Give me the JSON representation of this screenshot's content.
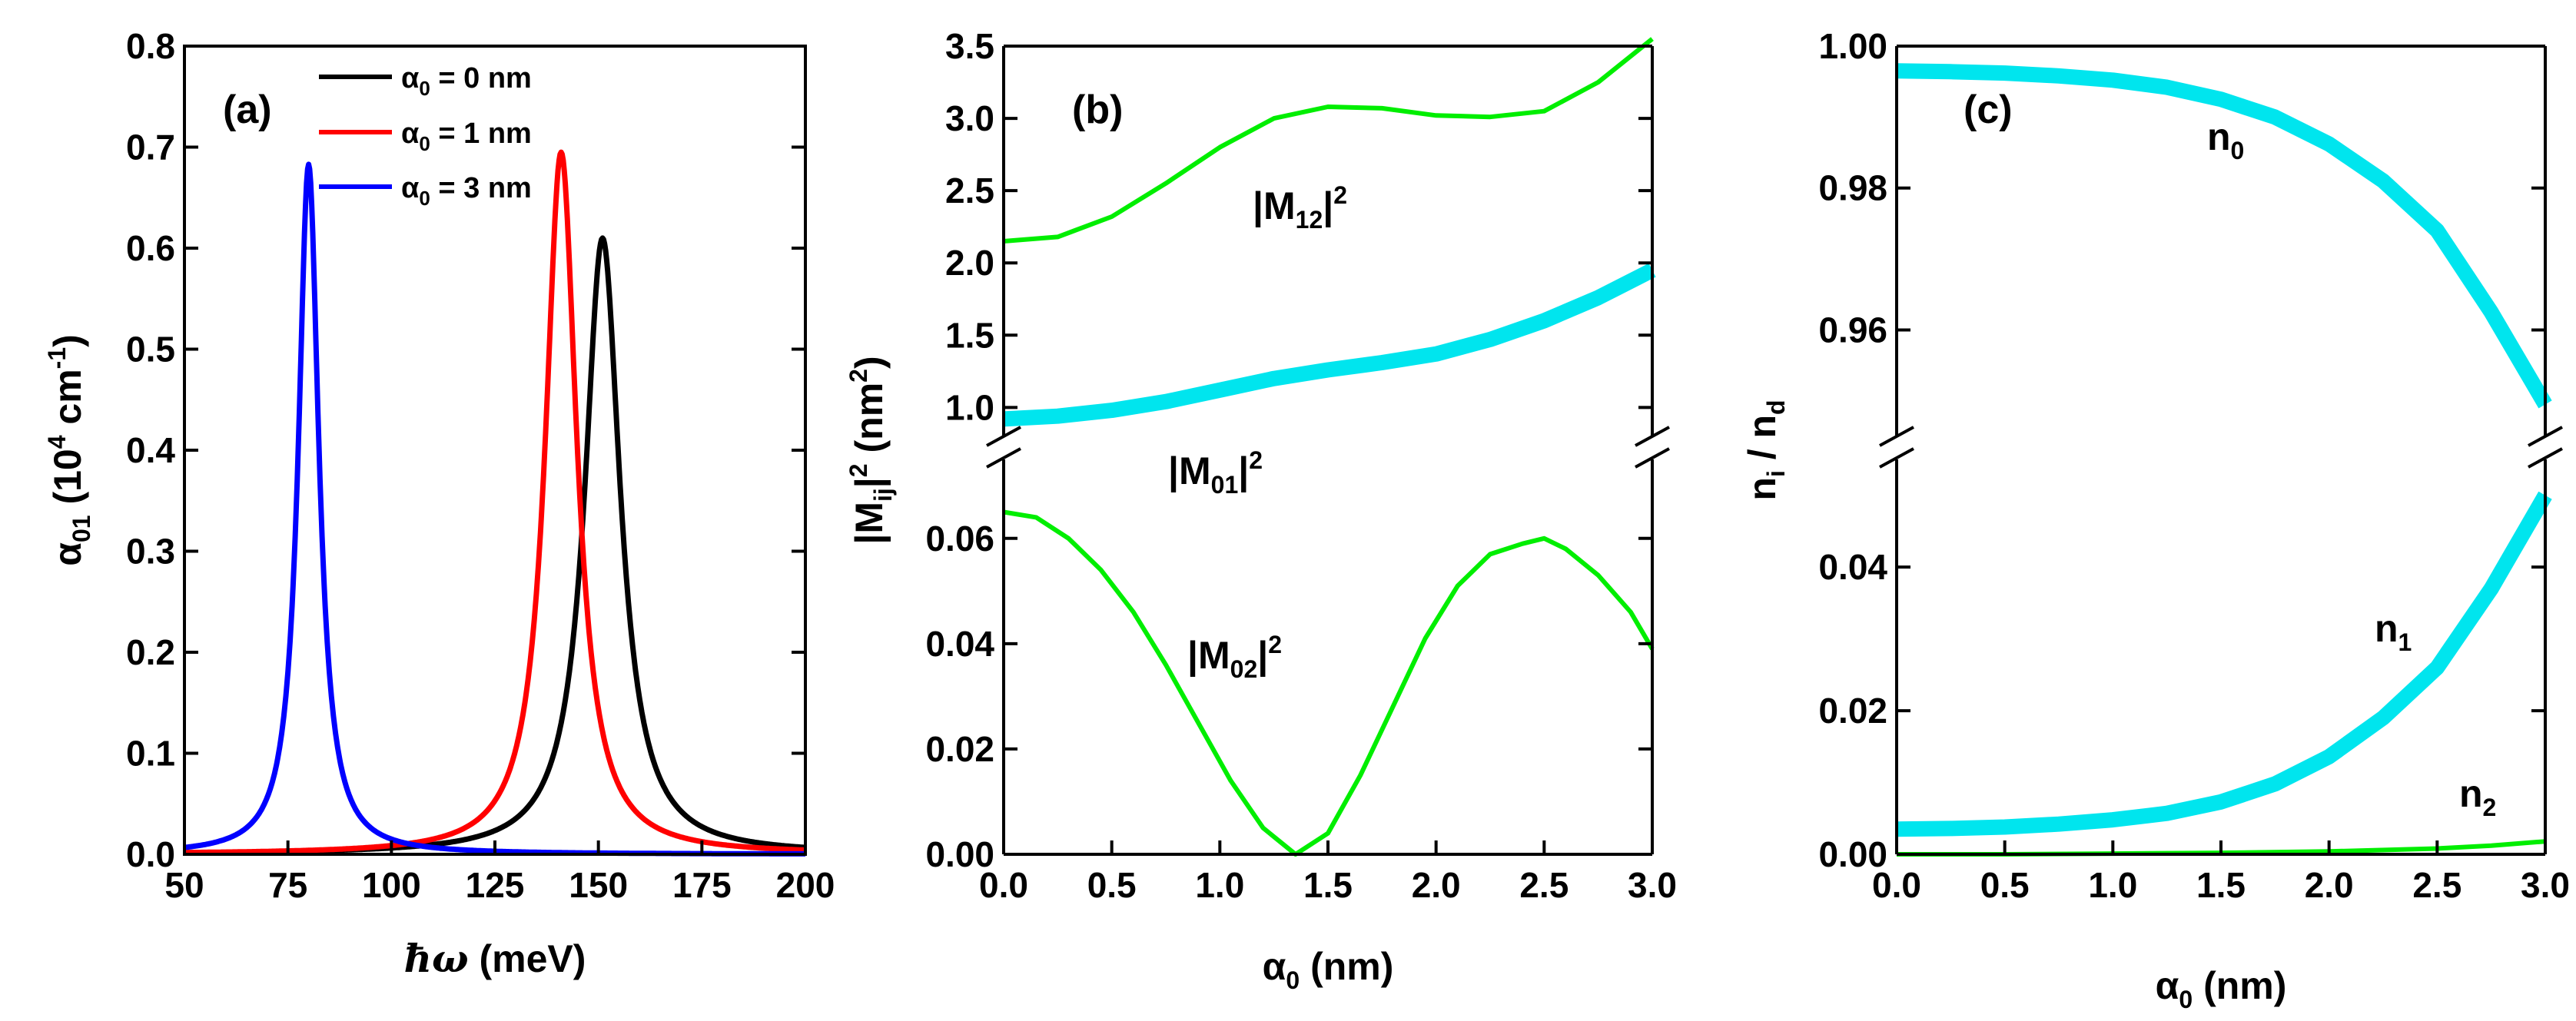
{
  "chart_data": [
    {
      "panel": "(a)",
      "type": "line",
      "xlabel": "ħω (meV)",
      "ylabel": "α01 (10^4 cm^-1)",
      "xlim": [
        50,
        200
      ],
      "ylim": [
        0,
        0.8
      ],
      "xticks": [
        "50",
        "75",
        "100",
        "125",
        "150",
        "175",
        "200"
      ],
      "yticks": [
        "0.0",
        "0.1",
        "0.2",
        "0.3",
        "0.4",
        "0.5",
        "0.6",
        "0.7",
        "0.8"
      ],
      "legend_position": "top-center",
      "series": [
        {
          "name": "α0 = 0 nm",
          "label_main": "α",
          "label_sub": "0",
          "label_rest": " = 0 nm",
          "color": "#000000",
          "peak_x": 151,
          "peak_y": 0.61,
          "hwhm": 5.2
        },
        {
          "name": "α0 = 1 nm",
          "label_main": "α",
          "label_sub": "0",
          "label_rest": " = 1 nm",
          "color": "#ff0000",
          "peak_x": 141,
          "peak_y": 0.695,
          "hwhm": 4.6
        },
        {
          "name": "α0 = 3 nm",
          "label_main": "α",
          "label_sub": "0",
          "label_rest": " = 3 nm",
          "color": "#0000ff",
          "peak_x": 80,
          "peak_y": 0.683,
          "hwhm": 3.0
        }
      ]
    },
    {
      "panel": "(b)",
      "type": "line",
      "xlabel": "α0 (nm)",
      "ylabel": "|Mij|^2 (nm^2)",
      "xlim": [
        0,
        3
      ],
      "ylim_upper": [
        0.8,
        3.5
      ],
      "ylim_lower": [
        0,
        0.075
      ],
      "xticks": [
        "0.0",
        "0.5",
        "1.0",
        "1.5",
        "2.0",
        "2.5",
        "3.0"
      ],
      "yticks_upper": [
        "1.0",
        "1.5",
        "2.0",
        "2.5",
        "3.0",
        "3.5"
      ],
      "yticks_lower": [
        "0.00",
        "0.02",
        "0.04",
        "0.06"
      ],
      "series": [
        {
          "name": "|M12|^2",
          "segment": "upper",
          "color": "#00ee00",
          "x": [
            0,
            0.25,
            0.5,
            0.75,
            1.0,
            1.25,
            1.5,
            1.75,
            2.0,
            2.25,
            2.5,
            2.75,
            3.0
          ],
          "y": [
            2.15,
            2.18,
            2.32,
            2.55,
            2.8,
            3.0,
            3.08,
            3.07,
            3.02,
            3.01,
            3.05,
            3.25,
            3.55
          ]
        },
        {
          "name": "|M01|^2",
          "segment": "upper",
          "color": "#00e5ee",
          "x": [
            0,
            0.25,
            0.5,
            0.75,
            1.0,
            1.25,
            1.5,
            1.75,
            2.0,
            2.25,
            2.5,
            2.75,
            3.0
          ],
          "y": [
            0.92,
            0.94,
            0.98,
            1.04,
            1.12,
            1.2,
            1.26,
            1.31,
            1.37,
            1.47,
            1.6,
            1.76,
            1.95
          ]
        },
        {
          "name": "|M02|^2",
          "segment": "lower",
          "color": "#00ee00",
          "x": [
            0,
            0.15,
            0.3,
            0.45,
            0.6,
            0.75,
            0.9,
            1.05,
            1.2,
            1.35,
            1.5,
            1.65,
            1.8,
            1.95,
            2.1,
            2.25,
            2.4,
            2.5,
            2.6,
            2.75,
            2.9,
            3.0
          ],
          "y": [
            0.065,
            0.064,
            0.06,
            0.054,
            0.046,
            0.036,
            0.025,
            0.014,
            0.005,
            0.0,
            0.004,
            0.015,
            0.028,
            0.041,
            0.051,
            0.057,
            0.059,
            0.06,
            0.058,
            0.053,
            0.046,
            0.039
          ]
        }
      ],
      "annotations": [
        {
          "main": "|M",
          "sub": "12",
          "rest": "|",
          "sup": "2"
        },
        {
          "main": "|M",
          "sub": "01",
          "rest": "|",
          "sup": "2"
        },
        {
          "main": "|M",
          "sub": "02",
          "rest": "|",
          "sup": "2"
        }
      ]
    },
    {
      "panel": "(c)",
      "type": "line",
      "xlabel": "α0 (nm)",
      "ylabel": "ni / nd",
      "xlim": [
        0,
        3
      ],
      "ylim_upper": [
        0.945,
        1.0
      ],
      "ylim_lower": [
        0,
        0.055
      ],
      "xticks": [
        "0.0",
        "0.5",
        "1.0",
        "1.5",
        "2.0",
        "2.5",
        "3.0"
      ],
      "yticks_upper": [
        "0.96",
        "0.98",
        "1.00"
      ],
      "yticks_lower": [
        "0.00",
        "0.02",
        "0.04"
      ],
      "series": [
        {
          "name": "n0",
          "segment": "upper",
          "color": "#00e5ee",
          "x": [
            0,
            0.25,
            0.5,
            0.75,
            1.0,
            1.25,
            1.5,
            1.75,
            2.0,
            2.25,
            2.5,
            2.75,
            3.0
          ],
          "y": [
            0.9965,
            0.9964,
            0.9962,
            0.9958,
            0.9952,
            0.9942,
            0.9925,
            0.99,
            0.9862,
            0.981,
            0.974,
            0.9625,
            0.9495
          ]
        },
        {
          "name": "n1",
          "segment": "lower",
          "color": "#00e5ee",
          "x": [
            0,
            0.25,
            0.5,
            0.75,
            1.0,
            1.25,
            1.5,
            1.75,
            2.0,
            2.25,
            2.5,
            2.75,
            3.0
          ],
          "y": [
            0.0035,
            0.0036,
            0.0038,
            0.0042,
            0.0048,
            0.0057,
            0.0073,
            0.0098,
            0.0136,
            0.019,
            0.026,
            0.037,
            0.05
          ]
        },
        {
          "name": "n2",
          "segment": "lower",
          "color": "#00ee00",
          "x": [
            0,
            0.5,
            1.0,
            1.5,
            2.0,
            2.5,
            2.75,
            3.0
          ],
          "y": [
            0.0,
            0.0,
            0.0001,
            0.0002,
            0.0004,
            0.0008,
            0.0012,
            0.0018
          ]
        }
      ],
      "annotations": [
        {
          "main": "n",
          "sub": "0"
        },
        {
          "main": "n",
          "sub": "1"
        },
        {
          "main": "n",
          "sub": "2"
        }
      ]
    }
  ]
}
